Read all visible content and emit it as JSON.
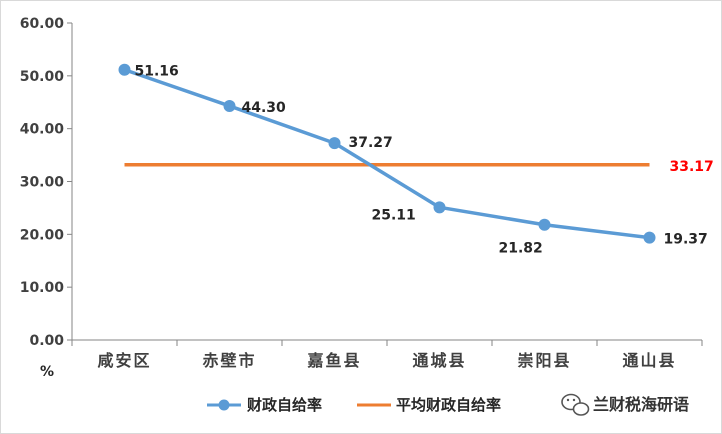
{
  "chart_data": {
    "type": "line",
    "categories": [
      "咸安区",
      "赤壁市",
      "嘉鱼县",
      "通城县",
      "崇阳县",
      "通山县"
    ],
    "series": [
      {
        "name": "财政自给率",
        "values": [
          51.16,
          44.3,
          37.27,
          25.11,
          21.82,
          19.37
        ],
        "labels": [
          "51.16",
          "44.30",
          "37.27",
          "25.11",
          "21.82",
          "19.37"
        ],
        "color": "#5B9BD5"
      },
      {
        "name": "平均财政自给率",
        "values": [
          33.17,
          33.17,
          33.17,
          33.17,
          33.17,
          33.17
        ],
        "label": "33.17",
        "color": "#ED7D31",
        "label_color": "#FF0000"
      }
    ],
    "y_ticks": [
      "0.00",
      "10.00",
      "20.00",
      "30.00",
      "40.00",
      "50.00",
      "60.00"
    ],
    "ylim": [
      0,
      60
    ],
    "y_unit": "%",
    "grid": false,
    "legend_position": "bottom"
  },
  "watermark": {
    "text": "兰财税海研语",
    "icon": "wechat-icon"
  }
}
